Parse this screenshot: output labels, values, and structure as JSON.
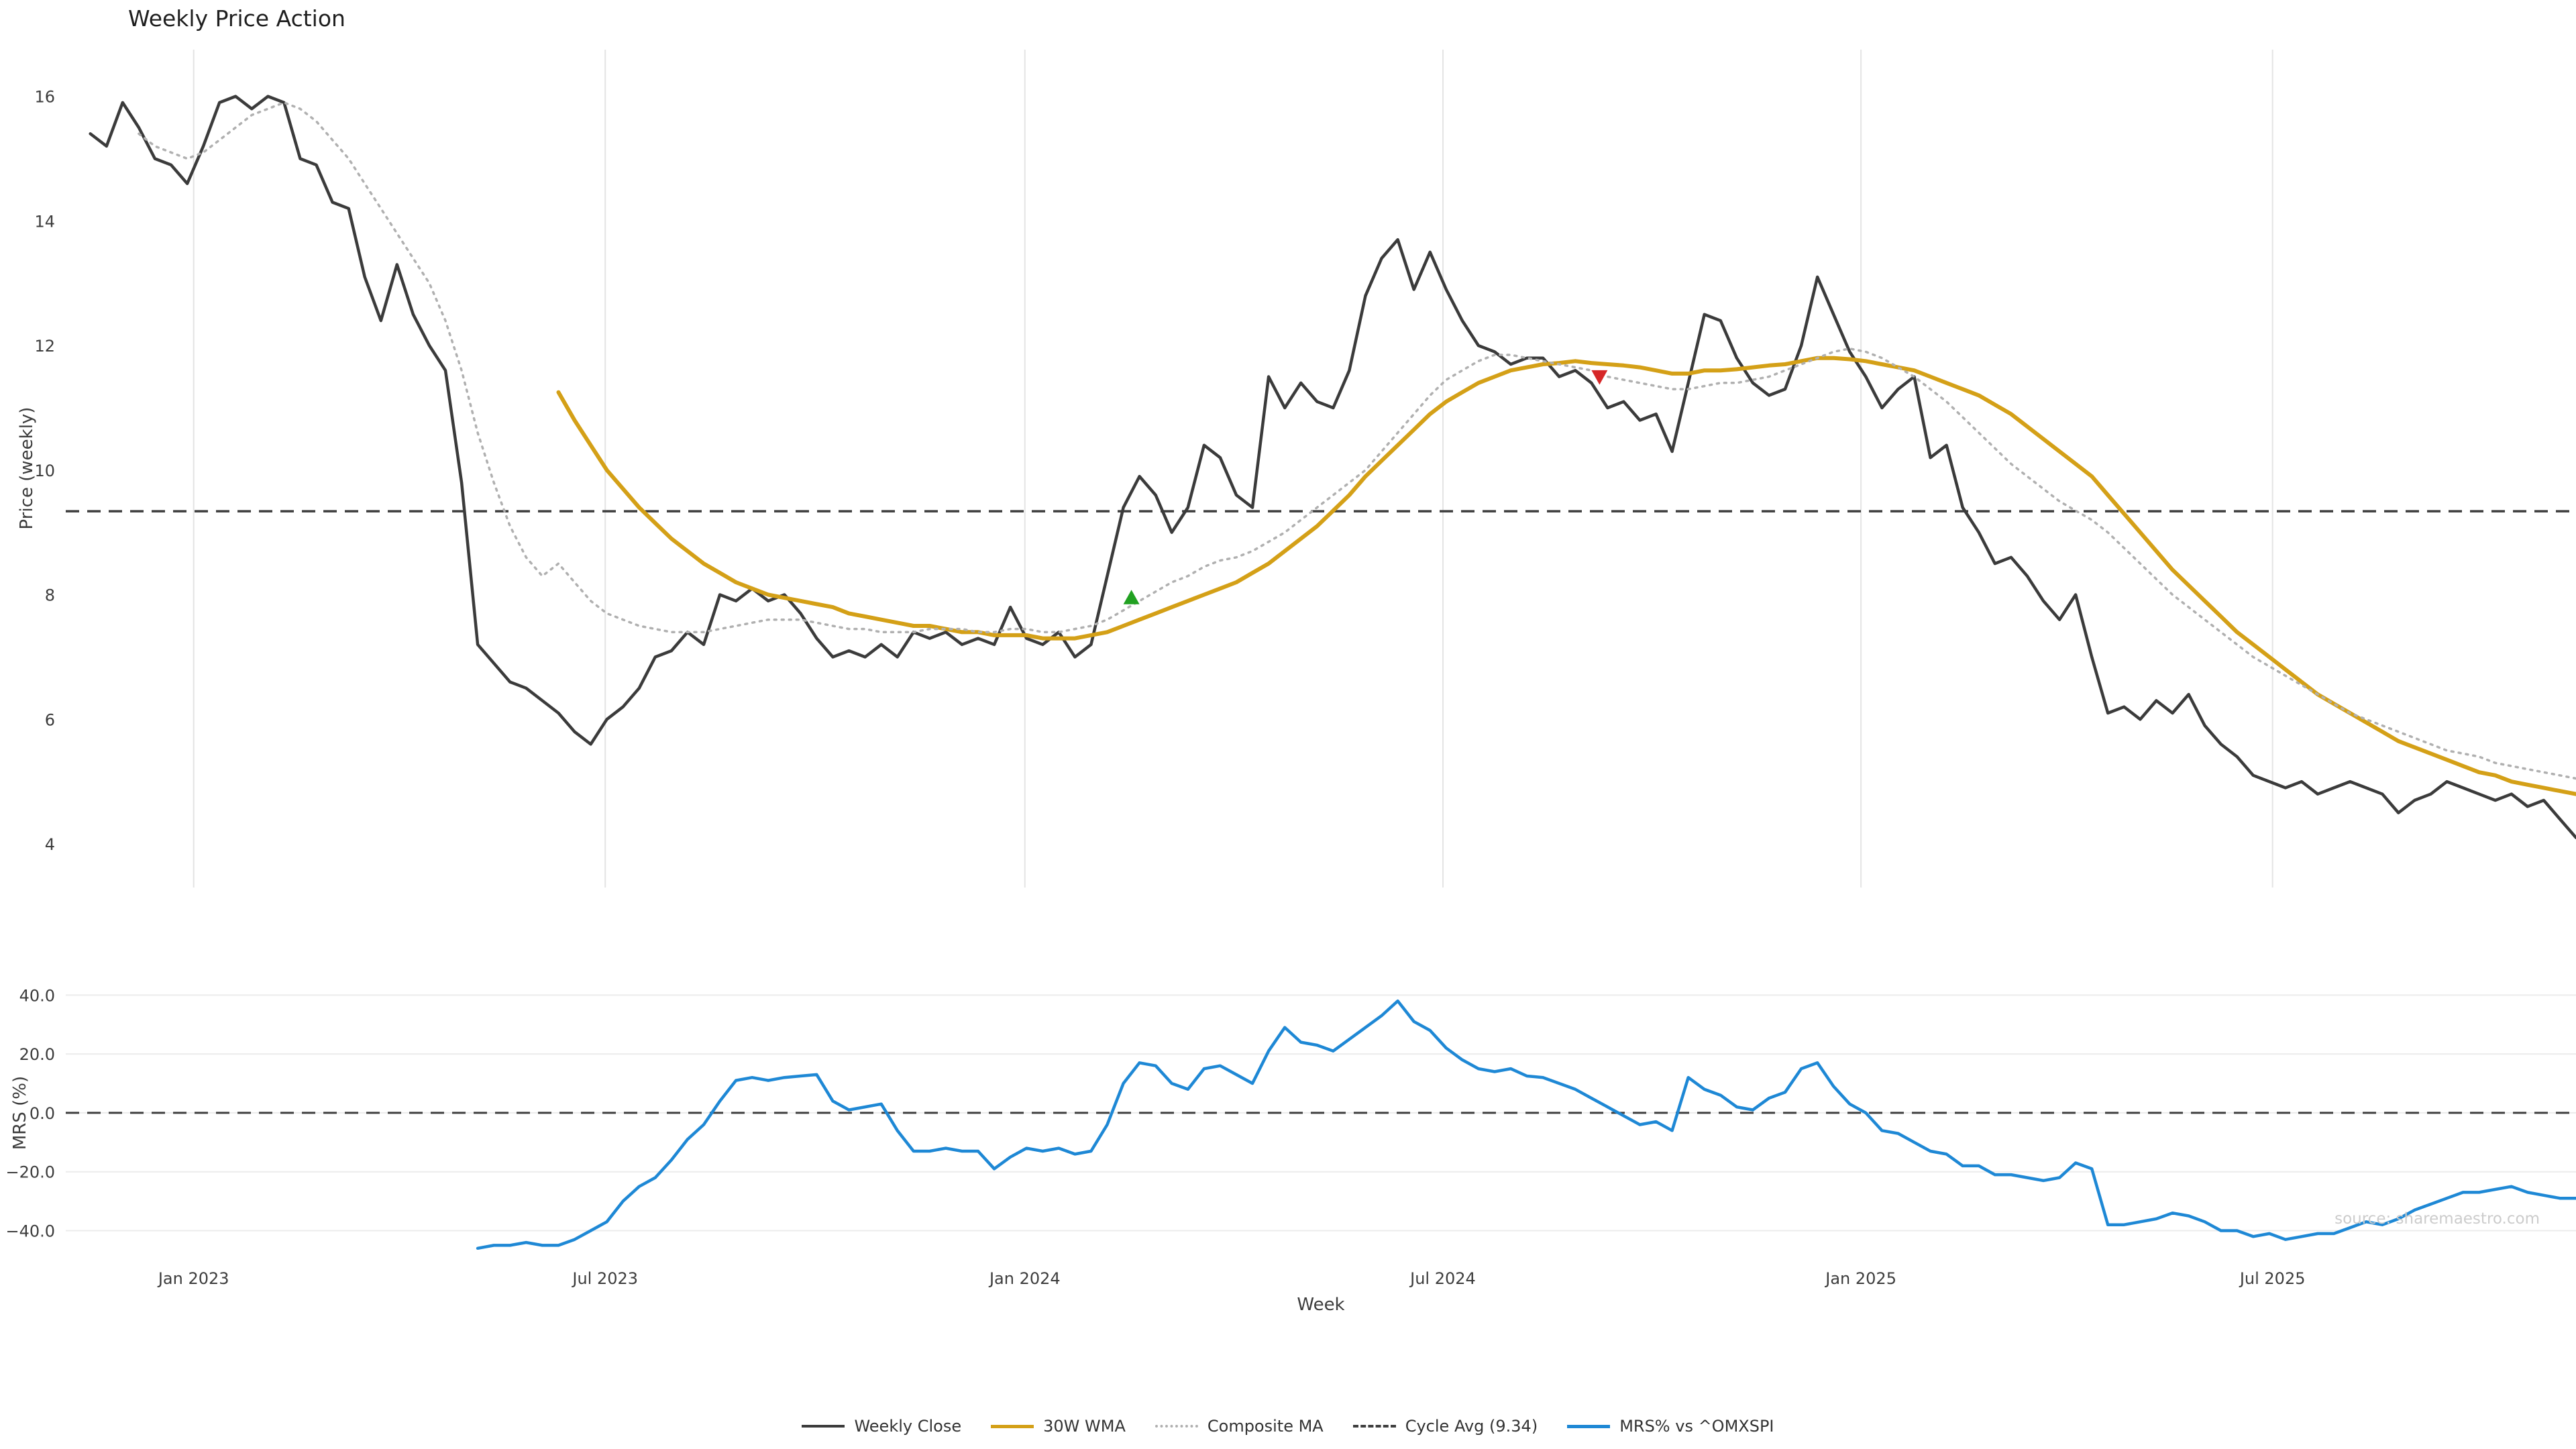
{
  "chart_data": {
    "type": "line",
    "title": "Weekly Price Action",
    "xlabel": "Week",
    "watermark": "source: sharemaestro.com",
    "week_range": [
      0,
      154
    ],
    "x_ticks": [
      {
        "week": 6.4,
        "label": "Jan 2023"
      },
      {
        "week": 31.9,
        "label": "Jul 2023"
      },
      {
        "week": 57.9,
        "label": "Jan 2024"
      },
      {
        "week": 83.8,
        "label": "Jul 2024"
      },
      {
        "week": 109.7,
        "label": "Jan 2025"
      },
      {
        "week": 135.2,
        "label": "Jul 2025"
      }
    ],
    "panels": {
      "price": {
        "ylabel": "Price (weekly)",
        "ylim": [
          3.3,
          16.75
        ],
        "yticks": [
          {
            "value": 4,
            "label": "4"
          },
          {
            "value": 6,
            "label": "6"
          },
          {
            "value": 8,
            "label": "8"
          },
          {
            "value": 10,
            "label": "10"
          },
          {
            "value": 12,
            "label": "12"
          },
          {
            "value": 14,
            "label": "14"
          },
          {
            "value": 16,
            "label": "16"
          }
        ],
        "cycle_avg": 9.34,
        "grid": "vertical"
      },
      "mrs": {
        "ylabel": "MRS (%)",
        "ylim": [
          -49,
          46
        ],
        "yticks": [
          {
            "value": -40,
            "label": "−40.0"
          },
          {
            "value": -20,
            "label": "−20.0"
          },
          {
            "value": 0,
            "label": "0.0"
          },
          {
            "value": 20,
            "label": "20.0"
          },
          {
            "value": 40,
            "label": "40.0"
          }
        ],
        "zero_line": 0,
        "grid": "horizontal"
      }
    },
    "legend": {
      "position": "bottom-center",
      "entries": [
        "Weekly Close",
        "30W WMA",
        "Composite MA",
        "Cycle Avg (9.34)",
        "MRS% vs ^OMXSPI"
      ]
    },
    "styles": {
      "close": {
        "color": "#3b3b3b",
        "width": 4.5
      },
      "wma": {
        "color": "#d4a017",
        "width": 6
      },
      "composite": {
        "color": "#b0b0b0",
        "width": 3.5,
        "dash": "3 8"
      },
      "cycle": {
        "color": "#3f3f3f",
        "width": 3.5,
        "dash": "20 12"
      },
      "mrs": {
        "color": "#1e88d5",
        "width": 4.5
      },
      "grid_v": "#e4e4e4",
      "grid_h": "#ececec",
      "buy": "#21a121",
      "sell": "#d62728",
      "tick_text": "#3c3c3c"
    },
    "series": [
      {
        "name": "Weekly Close",
        "key": "close",
        "panel": "price",
        "start_week": 0,
        "values": [
          15.4,
          15.2,
          15.9,
          15.5,
          15.0,
          14.9,
          14.6,
          15.2,
          15.9,
          16.0,
          15.8,
          16.0,
          15.9,
          15.0,
          14.9,
          14.3,
          14.2,
          13.1,
          12.4,
          13.3,
          12.5,
          12.0,
          11.6,
          9.8,
          7.2,
          6.9,
          6.6,
          6.5,
          6.3,
          6.1,
          5.8,
          5.6,
          6.0,
          6.2,
          6.5,
          7.0,
          7.1,
          7.4,
          7.2,
          8.0,
          7.9,
          8.1,
          7.9,
          8.0,
          7.7,
          7.3,
          7.0,
          7.1,
          7.0,
          7.2,
          7.0,
          7.4,
          7.3,
          7.4,
          7.2,
          7.3,
          7.2,
          7.8,
          7.3,
          7.2,
          7.4,
          7.0,
          7.2,
          8.3,
          9.4,
          9.9,
          9.6,
          9.0,
          9.4,
          10.4,
          10.2,
          9.6,
          9.4,
          11.5,
          11.0,
          11.4,
          11.1,
          11.0,
          11.6,
          12.8,
          13.4,
          13.7,
          12.9,
          13.5,
          12.9,
          12.4,
          12.0,
          11.9,
          11.7,
          11.8,
          11.8,
          11.5,
          11.6,
          11.4,
          11.0,
          11.1,
          10.8,
          10.9,
          10.3,
          11.4,
          12.5,
          12.4,
          11.8,
          11.4,
          11.2,
          11.3,
          12.0,
          13.1,
          12.5,
          11.9,
          11.5,
          11.0,
          11.3,
          11.5,
          10.2,
          10.4,
          9.4,
          9.0,
          8.5,
          8.6,
          8.3,
          7.9,
          7.6,
          8.0,
          7.0,
          6.1,
          6.2,
          6.0,
          6.3,
          6.1,
          6.4,
          5.9,
          5.6,
          5.4,
          5.1,
          5.0,
          4.9,
          5.0,
          4.8,
          4.9,
          5.0,
          4.9,
          4.8,
          4.5,
          4.7,
          4.8,
          5.0,
          4.9,
          4.8,
          4.7,
          4.8,
          4.6,
          4.7,
          4.4,
          4.1
        ]
      },
      {
        "name": "30W WMA",
        "key": "wma",
        "panel": "price",
        "start_week": 29,
        "values": [
          11.25,
          10.8,
          10.4,
          10.0,
          9.7,
          9.4,
          9.15,
          8.9,
          8.7,
          8.5,
          8.35,
          8.2,
          8.1,
          8.0,
          7.95,
          7.9,
          7.85,
          7.8,
          7.7,
          7.65,
          7.6,
          7.55,
          7.5,
          7.5,
          7.45,
          7.4,
          7.4,
          7.35,
          7.35,
          7.35,
          7.3,
          7.3,
          7.3,
          7.35,
          7.4,
          7.5,
          7.6,
          7.7,
          7.8,
          7.9,
          8.0,
          8.1,
          8.2,
          8.35,
          8.5,
          8.7,
          8.9,
          9.1,
          9.35,
          9.6,
          9.9,
          10.15,
          10.4,
          10.65,
          10.9,
          11.1,
          11.25,
          11.4,
          11.5,
          11.6,
          11.65,
          11.7,
          11.72,
          11.75,
          11.72,
          11.7,
          11.68,
          11.65,
          11.6,
          11.55,
          11.55,
          11.6,
          11.6,
          11.62,
          11.65,
          11.68,
          11.7,
          11.75,
          11.8,
          11.8,
          11.78,
          11.75,
          11.7,
          11.65,
          11.6,
          11.5,
          11.4,
          11.3,
          11.2,
          11.05,
          10.9,
          10.7,
          10.5,
          10.3,
          10.1,
          9.9,
          9.6,
          9.3,
          9.0,
          8.7,
          8.4,
          8.15,
          7.9,
          7.65,
          7.4,
          7.2,
          7.0,
          6.8,
          6.6,
          6.4,
          6.25,
          6.1,
          5.95,
          5.8,
          5.65,
          5.55,
          5.45,
          5.35,
          5.25,
          5.15,
          5.1,
          5.0,
          4.95,
          4.9,
          4.85,
          4.8
        ]
      },
      {
        "name": "Composite MA",
        "key": "composite",
        "panel": "price",
        "start_week": 3,
        "values": [
          15.4,
          15.2,
          15.1,
          15.0,
          15.1,
          15.3,
          15.5,
          15.7,
          15.8,
          15.9,
          15.8,
          15.6,
          15.3,
          15.0,
          14.6,
          14.2,
          13.8,
          13.4,
          13.0,
          12.4,
          11.6,
          10.6,
          9.8,
          9.1,
          8.6,
          8.3,
          8.5,
          8.2,
          7.9,
          7.7,
          7.6,
          7.5,
          7.45,
          7.4,
          7.4,
          7.4,
          7.45,
          7.5,
          7.55,
          7.6,
          7.6,
          7.6,
          7.55,
          7.5,
          7.45,
          7.45,
          7.4,
          7.4,
          7.4,
          7.45,
          7.45,
          7.45,
          7.4,
          7.4,
          7.45,
          7.45,
          7.4,
          7.4,
          7.45,
          7.5,
          7.6,
          7.75,
          7.9,
          8.05,
          8.2,
          8.3,
          8.45,
          8.55,
          8.6,
          8.7,
          8.85,
          9.0,
          9.2,
          9.4,
          9.6,
          9.8,
          10.0,
          10.3,
          10.6,
          10.9,
          11.2,
          11.45,
          11.6,
          11.75,
          11.85,
          11.85,
          11.8,
          11.75,
          11.7,
          11.65,
          11.6,
          11.5,
          11.45,
          11.4,
          11.35,
          11.3,
          11.3,
          11.35,
          11.4,
          11.4,
          11.45,
          11.5,
          11.6,
          11.7,
          11.8,
          11.9,
          11.95,
          11.9,
          11.8,
          11.65,
          11.5,
          11.3,
          11.1,
          10.85,
          10.6,
          10.35,
          10.1,
          9.9,
          9.7,
          9.5,
          9.35,
          9.2,
          9.0,
          8.75,
          8.5,
          8.25,
          8.0,
          7.8,
          7.6,
          7.4,
          7.2,
          7.0,
          6.85,
          6.7,
          6.55,
          6.4,
          6.25,
          6.1,
          6.0,
          5.9,
          5.8,
          5.7,
          5.6,
          5.5,
          5.45,
          5.4,
          5.3,
          5.25,
          5.2,
          5.15,
          5.1,
          5.05
        ]
      },
      {
        "name": "MRS% vs ^OMXSPI",
        "key": "mrs",
        "panel": "mrs",
        "start_week": 24,
        "values": [
          -46,
          -45,
          -45,
          -44,
          -45,
          -45,
          -43,
          -40,
          -37,
          -30,
          -25,
          -22,
          -16,
          -9,
          -4,
          4,
          11,
          12,
          11,
          12,
          12.5,
          13,
          4,
          1,
          2,
          3,
          -6,
          -13,
          -13,
          -12,
          -13,
          -13,
          -19,
          -15,
          -12,
          -13,
          -12,
          -14,
          -13,
          -4,
          10,
          17,
          16,
          10,
          8,
          15,
          16,
          13,
          10,
          21,
          29,
          24,
          23,
          21,
          25,
          29,
          33,
          38,
          31,
          28,
          22,
          18,
          15,
          14,
          15,
          12.5,
          12,
          10,
          8,
          5,
          2,
          -1,
          -4,
          -3,
          -6,
          12,
          8,
          6,
          2,
          1,
          5,
          7,
          15,
          17,
          9,
          3,
          0,
          -6,
          -7,
          -10,
          -13,
          -14,
          -18,
          -18,
          -21,
          -21,
          -22,
          -23,
          -22,
          -17,
          -19,
          -38,
          -38,
          -37,
          -36,
          -34,
          -35,
          -37,
          -40,
          -40,
          -42,
          -41,
          -43,
          -42,
          -41,
          -41,
          -39,
          -37,
          -38,
          -36,
          -33,
          -31,
          -29,
          -27,
          -27,
          -26,
          -25,
          -27,
          -28,
          -29,
          -29
        ]
      }
    ],
    "markers": [
      {
        "type": "buy-signal",
        "shape": "triangle-up",
        "week": 64.5,
        "price": 7.95
      },
      {
        "type": "sell-signal",
        "shape": "triangle-down",
        "week": 93.5,
        "price": 11.5
      }
    ]
  }
}
